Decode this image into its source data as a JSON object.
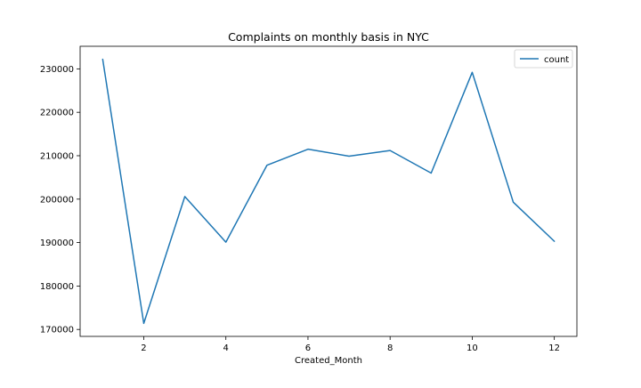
{
  "chart_data": {
    "type": "line",
    "title": "Complaints on monthly basis in NYC",
    "xlabel": "Created_Month",
    "ylabel": "",
    "x": [
      1,
      2,
      3,
      4,
      5,
      6,
      7,
      8,
      9,
      10,
      11,
      12
    ],
    "series": [
      {
        "name": "count",
        "color": "#1f77b4",
        "values": [
          232200,
          171400,
          200600,
          190100,
          207800,
          211500,
          209900,
          211200,
          206000,
          229200,
          199300,
          190300
        ]
      }
    ],
    "xlim": [
      0.45,
      12.55
    ],
    "ylim": [
      168400,
      235200
    ],
    "xticks": [
      2,
      4,
      6,
      8,
      10,
      12
    ],
    "yticks": [
      170000,
      180000,
      190000,
      200000,
      210000,
      220000,
      230000
    ],
    "legend_position": "upper right",
    "grid": false
  }
}
